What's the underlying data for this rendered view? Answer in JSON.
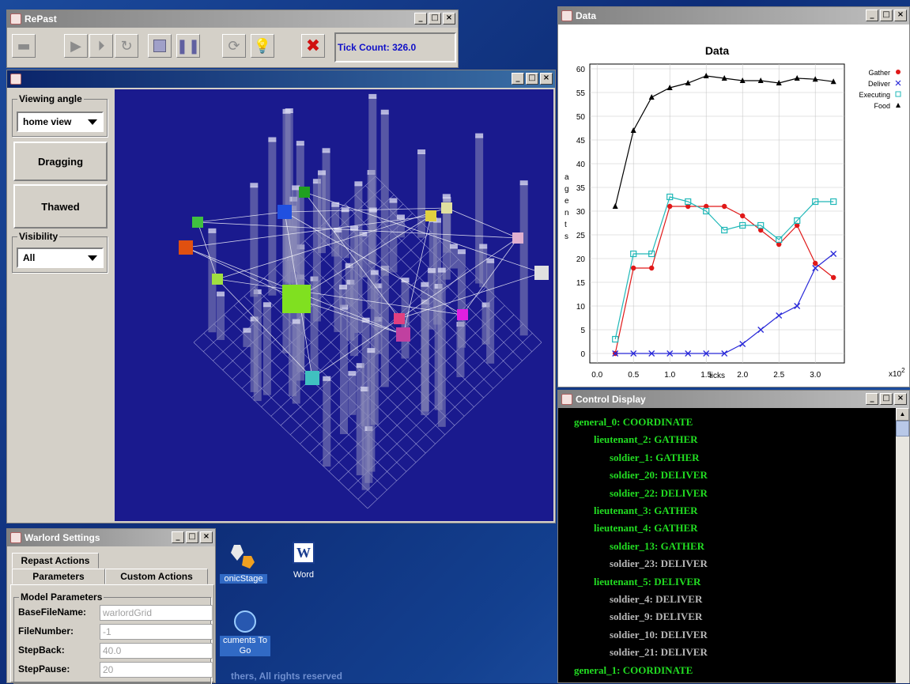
{
  "repast": {
    "title": "RePast",
    "tick_label": "Tick Count: 326.0"
  },
  "viewer": {
    "viewing_angle_label": "Viewing angle",
    "viewing_angle_value": "home view",
    "dragging_label": "Dragging",
    "thawed_label": "Thawed",
    "visibility_label": "Visibility",
    "visibility_value": "All"
  },
  "data_window": {
    "title": "Data"
  },
  "chart_data": {
    "type": "line",
    "title": "Data",
    "xlabel": "ticks",
    "ylabel": "agents",
    "x_multiplier": "x10",
    "x": [
      0.25,
      0.5,
      0.75,
      1.0,
      1.25,
      1.5,
      1.75,
      2.0,
      2.25,
      2.5,
      2.75,
      3.0,
      3.25
    ],
    "xticks": [
      "0.0",
      "0.5",
      "1.0",
      "1.5",
      "2.0",
      "2.5",
      "3.0"
    ],
    "yticks": [
      "0",
      "5",
      "10",
      "15",
      "20",
      "25",
      "30",
      "35",
      "40",
      "45",
      "50",
      "55",
      "60"
    ],
    "ylim": [
      -2,
      61
    ],
    "xlim": [
      -0.1,
      3.4
    ],
    "legend_position": "top-right",
    "series": [
      {
        "name": "Gather",
        "color": "#e01818",
        "marker": "circle",
        "values": [
          0,
          18,
          18,
          31,
          31,
          31,
          31,
          29,
          26,
          23,
          27,
          19,
          16
        ]
      },
      {
        "name": "Deliver",
        "color": "#2828d8",
        "marker": "x",
        "values": [
          0,
          0,
          0,
          0,
          0,
          0,
          0,
          2,
          5,
          8,
          10,
          18,
          21
        ]
      },
      {
        "name": "Executing",
        "color": "#20b8b8",
        "marker": "square",
        "values": [
          3,
          21,
          21,
          33,
          32,
          30,
          26,
          27,
          27,
          24,
          28,
          32,
          32
        ]
      },
      {
        "name": "Food",
        "color": "#000000",
        "marker": "triangle",
        "values": [
          31,
          47,
          54,
          56,
          57,
          58.5,
          58,
          57.5,
          57.5,
          57,
          58,
          57.8,
          57.3
        ]
      }
    ]
  },
  "control": {
    "title": "Control Display",
    "lines": [
      {
        "text": "general_0: COORDINATE"
      },
      {
        "text": "lieutenant_2: GATHER"
      },
      {
        "text": "soldier_1: GATHER"
      },
      {
        "text": "soldier_20: DELIVER"
      },
      {
        "text": "soldier_22: DELIVER"
      },
      {
        "text": "lieutenant_3: GATHER"
      },
      {
        "text": "lieutenant_4: GATHER"
      },
      {
        "text": "soldier_13: GATHER"
      },
      {
        "text": "soldier_23: DELIVER"
      },
      {
        "text": "lieutenant_5: DELIVER"
      },
      {
        "text": "soldier_4: DELIVER"
      },
      {
        "text": "soldier_9: DELIVER"
      },
      {
        "text": "soldier_10: DELIVER"
      },
      {
        "text": "soldier_21: DELIVER"
      },
      {
        "text": "general_1: COORDINATE"
      }
    ]
  },
  "settings": {
    "title": "Warlord Settings",
    "tab_repast": "Repast Actions",
    "tab_params": "Parameters",
    "tab_custom": "Custom Actions",
    "group": "Model Parameters",
    "params": [
      {
        "label": "BaseFileName:",
        "value": "warlordGrid"
      },
      {
        "label": "FileNumber:",
        "value": "-1"
      },
      {
        "label": "StepBack:",
        "value": "40.0"
      },
      {
        "label": "StepPause:",
        "value": "20"
      }
    ]
  },
  "desktop": {
    "icon_sonicstage": "onicStage",
    "icon_word": "Word",
    "icon_docs_line1": "cuments To",
    "icon_docs_line2": "Go",
    "footer_text": "thers, All rights reserved"
  }
}
